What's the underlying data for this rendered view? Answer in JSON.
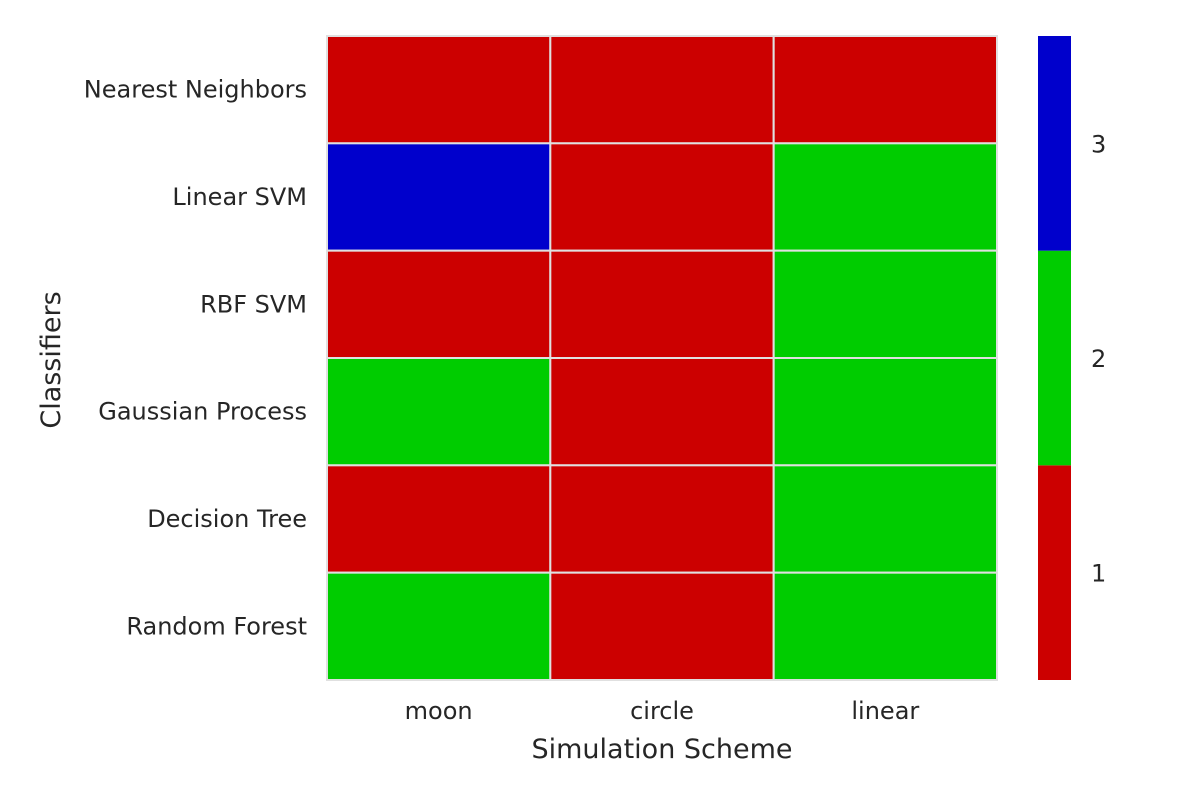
{
  "chart_data": {
    "type": "heatmap",
    "xlabel": "Simulation Scheme",
    "ylabel": "Classifiers",
    "x_categories": [
      "moon",
      "circle",
      "linear"
    ],
    "y_categories": [
      "Nearest Neighbors",
      "Linear SVM",
      "RBF SVM",
      "Gaussian Process",
      "Decision Tree",
      "Random Forest"
    ],
    "values": [
      [
        1,
        1,
        1
      ],
      [
        3,
        1,
        2
      ],
      [
        1,
        1,
        2
      ],
      [
        2,
        1,
        2
      ],
      [
        1,
        1,
        2
      ],
      [
        2,
        1,
        2
      ]
    ],
    "colorscale": [
      {
        "value": 1,
        "color": "#cc0000"
      },
      {
        "value": 2,
        "color": "#00cc00"
      },
      {
        "value": 3,
        "color": "#0000cc"
      }
    ],
    "colorbar_ticks": [
      "1",
      "2",
      "3"
    ],
    "colorbar_range": [
      0.5,
      3.5
    ],
    "grid_line_color": "#e0e0e0",
    "legend_position": "right colorbar"
  }
}
